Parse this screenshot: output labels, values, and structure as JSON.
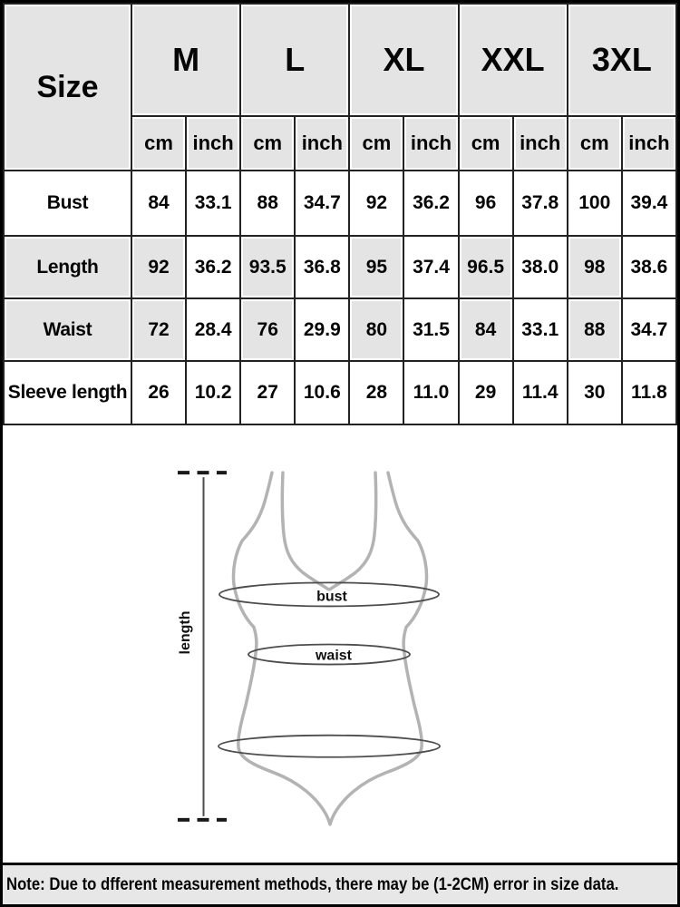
{
  "chart_data": {
    "type": "table",
    "corner_label": "Size",
    "sizes": [
      "M",
      "L",
      "XL",
      "XXL",
      "3XL"
    ],
    "unit_headers": [
      "cm",
      "inch"
    ],
    "rows": [
      {
        "label": "Bust",
        "shaded": false,
        "values": [
          "84",
          "33.1",
          "88",
          "34.7",
          "92",
          "36.2",
          "96",
          "37.8",
          "100",
          "39.4"
        ]
      },
      {
        "label": "Length",
        "shaded": true,
        "values": [
          "92",
          "36.2",
          "93.5",
          "36.8",
          "95",
          "37.4",
          "96.5",
          "38.0",
          "98",
          "38.6"
        ]
      },
      {
        "label": "Waist",
        "shaded": true,
        "values": [
          "72",
          "28.4",
          "76",
          "29.9",
          "80",
          "31.5",
          "84",
          "33.1",
          "88",
          "34.7"
        ]
      },
      {
        "label": "Sleeve length",
        "shaded": false,
        "values": [
          "26",
          "10.2",
          "27",
          "10.6",
          "28",
          "11.0",
          "29",
          "11.4",
          "30",
          "11.8"
        ]
      }
    ]
  },
  "diagram": {
    "length_label": "length",
    "bust_label": "bust",
    "waist_label": "waist"
  },
  "note": "Note: Due to dfferent measurement methods, there may be (1-2CM) error in size data.",
  "colors": {
    "cell_shade": "#e4e4e4",
    "table_border": "#222222",
    "note_bg": "#e7e7e7",
    "suit_outline": "#b3b3b3",
    "measure_line": "#4d4d4d",
    "dash_line": "#1a1a1a"
  }
}
